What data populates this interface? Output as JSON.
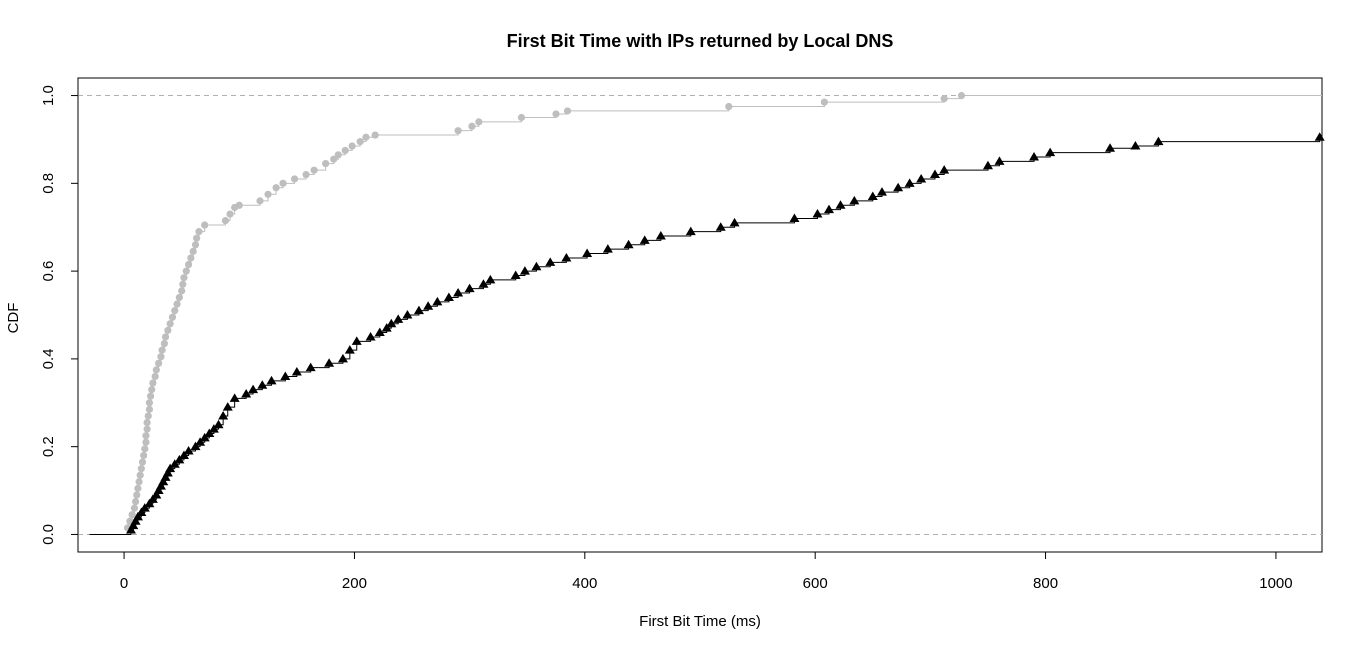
{
  "chart_data": {
    "type": "line",
    "title": "First Bit Time with IPs returned by Local DNS",
    "xlabel": "First Bit Time (ms)",
    "ylabel": "CDF",
    "xlim": [
      -40,
      1040
    ],
    "ylim": [
      -0.04,
      1.04
    ],
    "x_ticks": [
      0,
      200,
      400,
      600,
      800,
      1000
    ],
    "y_ticks": [
      0.0,
      0.2,
      0.4,
      0.6,
      0.8,
      1.0
    ],
    "x_tick_labels": [
      "0",
      "200",
      "400",
      "600",
      "800",
      "1000"
    ],
    "y_tick_labels": [
      "0.0",
      "0.2",
      "0.4",
      "0.6",
      "0.8",
      "1.0"
    ],
    "reference_lines_y": [
      0,
      1
    ],
    "legend": "none",
    "grid": false,
    "series": [
      {
        "marker": "circle",
        "color": "#bebebe",
        "x": [
          3,
          4,
          6,
          7,
          8,
          9,
          9,
          10,
          10,
          11,
          11,
          12,
          12,
          13,
          13,
          14,
          14,
          15,
          15,
          16,
          16,
          17,
          17,
          18,
          18,
          19,
          19,
          20,
          20,
          21,
          21,
          22,
          22,
          23,
          23,
          24,
          24,
          25,
          26,
          27,
          28,
          29,
          30,
          31,
          32,
          33,
          34,
          35,
          36,
          37,
          38,
          39,
          40,
          41,
          42,
          43,
          44,
          45,
          46,
          47,
          48,
          49,
          50,
          51,
          52,
          53,
          55,
          56,
          57,
          58,
          60,
          62,
          64,
          66,
          68,
          70,
          85,
          88,
          92,
          95,
          100,
          115,
          120,
          125,
          128,
          132,
          138,
          145,
          150,
          160,
          165,
          172,
          178,
          182,
          186,
          190,
          200,
          205,
          210,
          215,
          290,
          300,
          310,
          345,
          375,
          385,
          525,
          610,
          710,
          725
        ],
        "y": [
          0.02,
          0.03,
          0.04,
          0.05,
          0.06,
          0.07,
          0.08,
          0.09,
          0.1,
          0.11,
          0.12,
          0.13,
          0.14,
          0.15,
          0.16,
          0.17,
          0.18,
          0.19,
          0.2,
          0.21,
          0.22,
          0.23,
          0.24,
          0.25,
          0.26,
          0.27,
          0.28,
          0.29,
          0.3,
          0.31,
          0.32,
          0.33,
          0.34,
          0.35,
          0.36,
          0.37,
          0.38,
          0.39,
          0.4,
          0.41,
          0.42,
          0.43,
          0.44,
          0.45,
          0.46,
          0.47,
          0.48,
          0.49,
          0.5,
          0.51,
          0.52,
          0.53,
          0.54,
          0.55,
          0.56,
          0.57,
          0.58,
          0.59,
          0.6,
          0.61,
          0.62,
          0.63,
          0.64,
          0.65,
          0.66,
          0.67,
          0.68,
          0.69,
          0.7,
          0.71,
          0.72,
          0.73,
          0.74,
          0.75,
          0.76,
          0.77,
          0.78,
          0.79,
          0.8,
          0.81,
          0.82,
          0.83,
          0.84,
          0.85,
          0.86,
          0.87,
          0.88,
          0.89,
          0.9,
          0.91,
          0.92,
          0.93,
          0.94,
          0.95,
          0.96,
          0.97,
          0.98,
          0.99,
          1.0,
          1.0,
          1.0,
          1.0,
          1.0,
          1.0,
          1.0,
          1.0,
          1.0,
          1.0,
          1.0,
          1.0
        ],
        "points": [
          [
            3,
            0.015
          ],
          [
            5,
            0.03
          ],
          [
            7,
            0.045
          ],
          [
            9,
            0.06
          ],
          [
            10,
            0.075
          ],
          [
            11,
            0.09
          ],
          [
            12,
            0.105
          ],
          [
            13,
            0.12
          ],
          [
            14,
            0.135
          ],
          [
            15,
            0.15
          ],
          [
            16,
            0.165
          ],
          [
            17,
            0.18
          ],
          [
            18,
            0.195
          ],
          [
            19,
            0.21
          ],
          [
            19,
            0.225
          ],
          [
            20,
            0.24
          ],
          [
            20,
            0.255
          ],
          [
            21,
            0.27
          ],
          [
            22,
            0.285
          ],
          [
            22,
            0.3
          ],
          [
            23,
            0.315
          ],
          [
            24,
            0.33
          ],
          [
            25,
            0.345
          ],
          [
            27,
            0.36
          ],
          [
            28,
            0.375
          ],
          [
            30,
            0.39
          ],
          [
            32,
            0.405
          ],
          [
            33,
            0.42
          ],
          [
            35,
            0.435
          ],
          [
            36,
            0.45
          ],
          [
            38,
            0.465
          ],
          [
            40,
            0.48
          ],
          [
            42,
            0.495
          ],
          [
            44,
            0.51
          ],
          [
            46,
            0.525
          ],
          [
            48,
            0.54
          ],
          [
            50,
            0.555
          ],
          [
            51,
            0.57
          ],
          [
            52,
            0.585
          ],
          [
            54,
            0.6
          ],
          [
            56,
            0.615
          ],
          [
            58,
            0.63
          ],
          [
            60,
            0.645
          ],
          [
            62,
            0.66
          ],
          [
            63,
            0.675
          ],
          [
            65,
            0.69
          ],
          [
            70,
            0.705
          ],
          [
            88,
            0.715
          ],
          [
            92,
            0.73
          ],
          [
            96,
            0.745
          ],
          [
            100,
            0.75
          ],
          [
            118,
            0.76
          ],
          [
            125,
            0.775
          ],
          [
            132,
            0.79
          ],
          [
            138,
            0.8
          ],
          [
            148,
            0.81
          ],
          [
            158,
            0.82
          ],
          [
            165,
            0.83
          ],
          [
            175,
            0.845
          ],
          [
            182,
            0.855
          ],
          [
            186,
            0.865
          ],
          [
            192,
            0.875
          ],
          [
            198,
            0.885
          ],
          [
            205,
            0.895
          ],
          [
            210,
            0.905
          ],
          [
            218,
            0.91
          ],
          [
            290,
            0.92
          ],
          [
            302,
            0.93
          ],
          [
            308,
            0.94
          ],
          [
            345,
            0.95
          ],
          [
            375,
            0.958
          ],
          [
            385,
            0.965
          ],
          [
            525,
            0.975
          ],
          [
            608,
            0.985
          ],
          [
            712,
            0.993
          ],
          [
            727,
            1.0
          ]
        ]
      },
      {
        "marker": "triangle",
        "color": "#000000",
        "points": [
          [
            6,
            0.01
          ],
          [
            8,
            0.02
          ],
          [
            10,
            0.03
          ],
          [
            12,
            0.04
          ],
          [
            15,
            0.05
          ],
          [
            18,
            0.06
          ],
          [
            22,
            0.07
          ],
          [
            25,
            0.08
          ],
          [
            28,
            0.09
          ],
          [
            30,
            0.1
          ],
          [
            32,
            0.11
          ],
          [
            34,
            0.12
          ],
          [
            36,
            0.13
          ],
          [
            38,
            0.14
          ],
          [
            40,
            0.15
          ],
          [
            44,
            0.16
          ],
          [
            48,
            0.17
          ],
          [
            52,
            0.18
          ],
          [
            56,
            0.19
          ],
          [
            62,
            0.2
          ],
          [
            66,
            0.21
          ],
          [
            70,
            0.22
          ],
          [
            74,
            0.23
          ],
          [
            78,
            0.24
          ],
          [
            82,
            0.25
          ],
          [
            86,
            0.27
          ],
          [
            90,
            0.29
          ],
          [
            96,
            0.31
          ],
          [
            106,
            0.32
          ],
          [
            112,
            0.33
          ],
          [
            120,
            0.34
          ],
          [
            128,
            0.35
          ],
          [
            140,
            0.36
          ],
          [
            150,
            0.37
          ],
          [
            162,
            0.38
          ],
          [
            178,
            0.39
          ],
          [
            190,
            0.4
          ],
          [
            196,
            0.42
          ],
          [
            202,
            0.44
          ],
          [
            214,
            0.45
          ],
          [
            222,
            0.46
          ],
          [
            228,
            0.47
          ],
          [
            232,
            0.48
          ],
          [
            238,
            0.49
          ],
          [
            246,
            0.5
          ],
          [
            256,
            0.51
          ],
          [
            264,
            0.52
          ],
          [
            272,
            0.53
          ],
          [
            282,
            0.54
          ],
          [
            290,
            0.55
          ],
          [
            300,
            0.56
          ],
          [
            312,
            0.57
          ],
          [
            318,
            0.58
          ],
          [
            340,
            0.59
          ],
          [
            348,
            0.6
          ],
          [
            358,
            0.61
          ],
          [
            370,
            0.62
          ],
          [
            384,
            0.63
          ],
          [
            402,
            0.64
          ],
          [
            420,
            0.65
          ],
          [
            438,
            0.66
          ],
          [
            452,
            0.67
          ],
          [
            466,
            0.68
          ],
          [
            492,
            0.69
          ],
          [
            518,
            0.7
          ],
          [
            530,
            0.71
          ],
          [
            582,
            0.72
          ],
          [
            602,
            0.73
          ],
          [
            612,
            0.74
          ],
          [
            622,
            0.75
          ],
          [
            634,
            0.76
          ],
          [
            650,
            0.77
          ],
          [
            658,
            0.78
          ],
          [
            672,
            0.79
          ],
          [
            682,
            0.8
          ],
          [
            692,
            0.81
          ],
          [
            704,
            0.82
          ],
          [
            712,
            0.83
          ],
          [
            750,
            0.84
          ],
          [
            760,
            0.85
          ],
          [
            790,
            0.86
          ],
          [
            804,
            0.87
          ],
          [
            856,
            0.88
          ],
          [
            878,
            0.885
          ],
          [
            898,
            0.895
          ],
          [
            1038,
            0.905
          ]
        ]
      }
    ]
  }
}
